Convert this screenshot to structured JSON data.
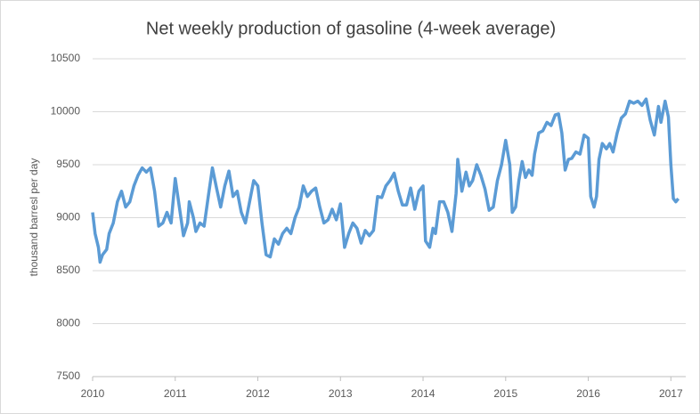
{
  "chart_data": {
    "type": "line",
    "title": "Net weekly production of gasoline (4-week average)",
    "ylabel": "thousand barresl per day",
    "xlim": [
      2010,
      2017.18
    ],
    "xticks": [
      2010,
      2011,
      2012,
      2013,
      2014,
      2015,
      2016,
      2017
    ],
    "ylim": [
      7500,
      10500
    ],
    "yticks": [
      7500,
      8000,
      8500,
      9000,
      9500,
      10000,
      10500
    ],
    "grid": true,
    "series": [
      {
        "name": "Net weekly production of gasoline",
        "color": "#5b9bd5",
        "x": [
          2010.0,
          2010.03,
          2010.07,
          2010.09,
          2010.12,
          2010.17,
          2010.2,
          2010.25,
          2010.3,
          2010.35,
          2010.4,
          2010.45,
          2010.5,
          2010.55,
          2010.6,
          2010.65,
          2010.7,
          2010.75,
          2010.8,
          2010.85,
          2010.9,
          2010.95,
          2011.0,
          2011.05,
          2011.1,
          2011.15,
          2011.17,
          2011.22,
          2011.25,
          2011.3,
          2011.35,
          2011.4,
          2011.45,
          2011.5,
          2011.55,
          2011.6,
          2011.65,
          2011.7,
          2011.75,
          2011.8,
          2011.85,
          2011.9,
          2011.95,
          2012.0,
          2012.05,
          2012.1,
          2012.15,
          2012.2,
          2012.25,
          2012.3,
          2012.35,
          2012.4,
          2012.45,
          2012.5,
          2012.55,
          2012.6,
          2012.65,
          2012.7,
          2012.75,
          2012.8,
          2012.85,
          2012.9,
          2012.95,
          2013.0,
          2013.05,
          2013.1,
          2013.15,
          2013.2,
          2013.25,
          2013.3,
          2013.35,
          2013.4,
          2013.45,
          2013.5,
          2013.55,
          2013.6,
          2013.65,
          2013.7,
          2013.75,
          2013.8,
          2013.85,
          2013.9,
          2013.95,
          2014.0,
          2014.03,
          2014.08,
          2014.12,
          2014.15,
          2014.2,
          2014.25,
          2014.3,
          2014.35,
          2014.4,
          2014.42,
          2014.47,
          2014.52,
          2014.56,
          2014.6,
          2014.65,
          2014.7,
          2014.75,
          2014.8,
          2014.85,
          2014.9,
          2014.95,
          2015.0,
          2015.05,
          2015.08,
          2015.12,
          2015.16,
          2015.2,
          2015.24,
          2015.28,
          2015.32,
          2015.35,
          2015.4,
          2015.45,
          2015.5,
          2015.55,
          2015.6,
          2015.64,
          2015.68,
          2015.72,
          2015.76,
          2015.8,
          2015.85,
          2015.9,
          2015.95,
          2016.0,
          2016.03,
          2016.07,
          2016.1,
          2016.13,
          2016.17,
          2016.22,
          2016.26,
          2016.3,
          2016.35,
          2016.4,
          2016.45,
          2016.5,
          2016.55,
          2016.6,
          2016.65,
          2016.7,
          2016.75,
          2016.8,
          2016.85,
          2016.88,
          2016.93,
          2016.97,
          2017.0,
          2017.03,
          2017.06,
          2017.09
        ],
        "values": [
          9050,
          8850,
          8720,
          8580,
          8650,
          8700,
          8850,
          8950,
          9150,
          9250,
          9100,
          9150,
          9300,
          9400,
          9470,
          9430,
          9470,
          9250,
          8920,
          8950,
          9050,
          8950,
          9370,
          9100,
          8830,
          8950,
          9150,
          9000,
          8870,
          8950,
          8920,
          9200,
          9470,
          9280,
          9100,
          9300,
          9440,
          9200,
          9250,
          9050,
          8950,
          9150,
          9350,
          9300,
          8950,
          8650,
          8630,
          8800,
          8750,
          8850,
          8900,
          8850,
          9000,
          9100,
          9300,
          9200,
          9250,
          9280,
          9100,
          8950,
          8980,
          9080,
          8980,
          9130,
          8720,
          8850,
          8950,
          8900,
          8760,
          8880,
          8830,
          8880,
          9200,
          9190,
          9300,
          9350,
          9420,
          9250,
          9120,
          9120,
          9280,
          9080,
          9250,
          9300,
          8780,
          8720,
          8900,
          8850,
          9150,
          9150,
          9050,
          8870,
          9230,
          9550,
          9250,
          9430,
          9300,
          9350,
          9500,
          9400,
          9270,
          9070,
          9100,
          9350,
          9500,
          9730,
          9500,
          9050,
          9100,
          9350,
          9530,
          9380,
          9450,
          9400,
          9600,
          9800,
          9820,
          9900,
          9870,
          9970,
          9980,
          9800,
          9450,
          9550,
          9560,
          9620,
          9600,
          9780,
          9750,
          9200,
          9100,
          9200,
          9550,
          9700,
          9650,
          9700,
          9620,
          9800,
          9940,
          9980,
          10100,
          10080,
          10100,
          10060,
          10120,
          9920,
          9780,
          10050,
          9900,
          10100,
          9950,
          9500,
          9180,
          9150,
          9180
        ]
      }
    ]
  }
}
